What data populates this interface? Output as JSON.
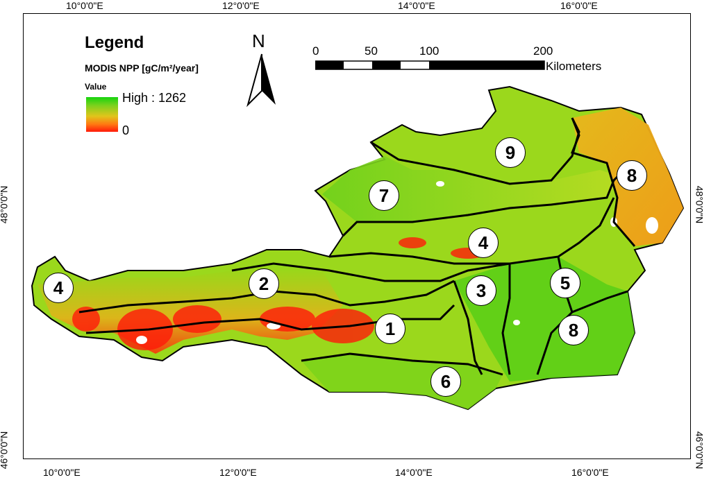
{
  "legend": {
    "title": "Legend",
    "layer": "MODIS NPP [gC/m²/year]",
    "field": "Value",
    "high_label": "High : 1262",
    "low_label": "0",
    "ramp_colors": [
      "#16d40f",
      "#7fd11d",
      "#e0c51b",
      "#ff7a12",
      "#ff1a0a"
    ]
  },
  "north_arrow": {
    "label": "N"
  },
  "scale_bar": {
    "labels": [
      "0",
      "50",
      "100",
      "200"
    ],
    "unit": "Kilometers"
  },
  "graticule": {
    "lon_labels": [
      "10°0'0\"E",
      "12°0'0\"E",
      "14°0'0\"E",
      "16°0'0\"E"
    ],
    "lat_labels": [
      "48°0'0\"N",
      "46°0'0\"N"
    ]
  },
  "zones": [
    "4",
    "2",
    "1",
    "7",
    "4",
    "3",
    "9",
    "8",
    "5",
    "8",
    "6"
  ],
  "colors": {
    "high": "#16d40f",
    "mid": "#c8e021",
    "low": "#ff1a0a",
    "nodata": "#ffffff",
    "boundary": "#000000"
  }
}
